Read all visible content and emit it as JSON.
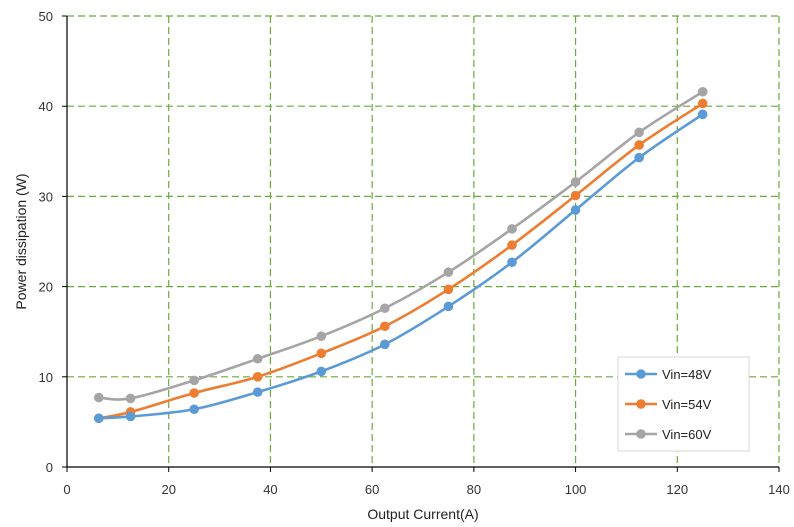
{
  "chart_data": {
    "type": "line",
    "xlabel": "Output Current(A)",
    "ylabel": "Power dissipation  (W)",
    "xlim": [
      0,
      140
    ],
    "ylim": [
      0,
      50
    ],
    "xticks": [
      0,
      20,
      40,
      60,
      80,
      100,
      120,
      140
    ],
    "yticks": [
      0,
      10,
      20,
      30,
      40,
      50
    ],
    "grid": true,
    "grid_style": "dashed",
    "legend_position": "bottom-right",
    "x": [
      6.25,
      12.5,
      25,
      37.5,
      50,
      62.5,
      75,
      87.5,
      100,
      112.5,
      125
    ],
    "series": [
      {
        "name": "Vin=48V",
        "color": "#5b9bd5",
        "values": [
          5.4,
          5.6,
          6.4,
          8.3,
          10.6,
          13.6,
          17.8,
          22.7,
          28.5,
          34.3,
          39.1
        ]
      },
      {
        "name": "Vin=54V",
        "color": "#ed7d31",
        "values": [
          5.4,
          6.1,
          8.2,
          10.0,
          12.6,
          15.6,
          19.7,
          24.6,
          30.1,
          35.7,
          40.3
        ]
      },
      {
        "name": "Vin=60V",
        "color": "#a5a5a5",
        "values": [
          7.7,
          7.6,
          9.6,
          12.0,
          14.5,
          17.6,
          21.6,
          26.4,
          31.6,
          37.1,
          41.6
        ]
      }
    ],
    "grid_color": "#6aaa3a"
  }
}
